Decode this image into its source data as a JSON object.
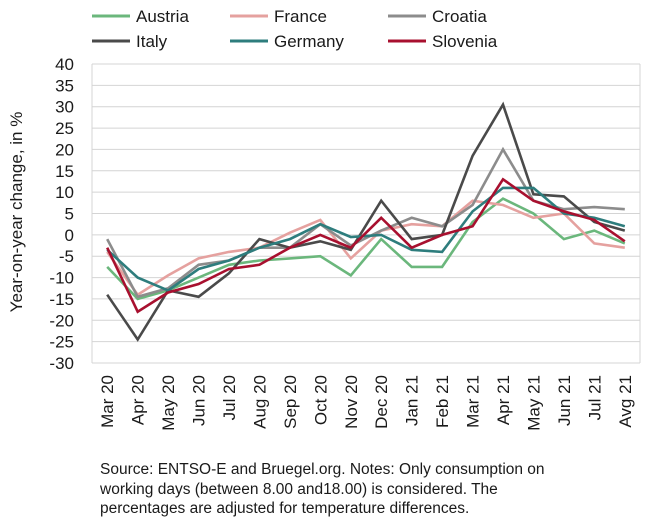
{
  "chart_data": {
    "type": "line",
    "title": "",
    "xlabel": "",
    "ylabel": "Year-on-year change, in %",
    "ylim": [
      -30,
      40
    ],
    "yticks": [
      40,
      35,
      30,
      25,
      20,
      15,
      10,
      5,
      0,
      -5,
      -10,
      -15,
      -20,
      -25,
      -30
    ],
    "grid": true,
    "legend_position": "top",
    "categories": [
      "Mar 20",
      "Apr 20",
      "May 20",
      "Jun 20",
      "Jul 20",
      "Aug 20",
      "Sep 20",
      "Oct 20",
      "Nov 20",
      "Dec 20",
      "Jan 21",
      "Feb 21",
      "Mar 21",
      "Apr 21",
      "May 21",
      "Jun 21",
      "Jul 21",
      "Avg 21"
    ],
    "series": [
      {
        "name": "Austria",
        "color": "#6bb77c",
        "values": [
          -7.5,
          -15,
          -13,
          -10,
          -7,
          -6,
          -5.5,
          -5,
          -9.5,
          -1,
          -7.5,
          -7.5,
          3,
          8.5,
          5,
          -1,
          1,
          -2
        ]
      },
      {
        "name": "France",
        "color": "#e5a19f",
        "values": [
          -4,
          -14,
          -9.5,
          -5.5,
          -4,
          -3,
          0.5,
          3.5,
          -5.5,
          1,
          2.5,
          2,
          8,
          7,
          4,
          5,
          -2,
          -3
        ]
      },
      {
        "name": "Croatia",
        "color": "#8c8c8c",
        "values": [
          -1,
          -14.5,
          -12.5,
          -7,
          -6,
          -3,
          -3,
          2.5,
          -2.5,
          1,
          4,
          2,
          7,
          20,
          8,
          6,
          6.5,
          6
        ]
      },
      {
        "name": "Italy",
        "color": "#4a4a4a",
        "values": [
          -14,
          -24.5,
          -13,
          -14.5,
          -9,
          -1,
          -3,
          -1.5,
          -3.5,
          8,
          -1,
          0,
          18.5,
          30.5,
          9.5,
          9,
          3,
          1
        ]
      },
      {
        "name": "Germany",
        "color": "#2e7d7d",
        "values": [
          -3.5,
          -10,
          -13,
          -8,
          -6,
          -3,
          -1,
          2.5,
          -0.5,
          0,
          -3.5,
          -4,
          5.5,
          11,
          11,
          5,
          4,
          2
        ]
      },
      {
        "name": "Slovenia",
        "color": "#a8102f",
        "values": [
          -3,
          -18,
          -13.5,
          -11.5,
          -8,
          -7,
          -3,
          0,
          -3,
          4,
          -3,
          0,
          2,
          13,
          8,
          5.5,
          3.5,
          -1.5
        ]
      }
    ]
  },
  "note": {
    "lines": [
      "Source: ENTSO-E and Bruegel.org. Notes: Only consumption on",
      "working days (between 8.00 and18.00) is considered. The",
      "percentages are adjusted for temperature differences."
    ]
  }
}
